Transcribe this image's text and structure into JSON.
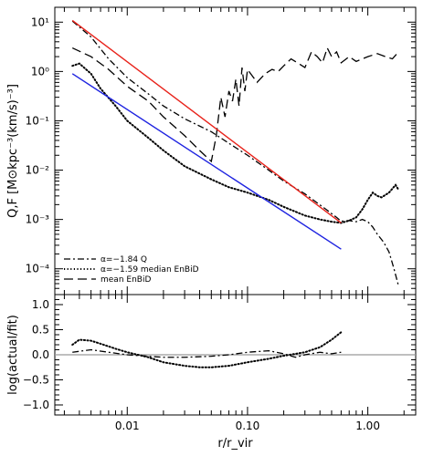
{
  "chart_data": [
    {
      "panel": "top",
      "type": "line",
      "xlabel": "r/r_vir",
      "ylabel": "Q,F [M⊙kpc⁻³(km/s)⁻³]",
      "xscale": "log",
      "yscale": "log",
      "xlim": [
        0.0025,
        2.5
      ],
      "ylim": [
        3e-05,
        20
      ],
      "xticks": [
        0.01,
        0.1,
        1.0
      ],
      "xtick_labels": [
        "0.01",
        "0.10",
        "1.00"
      ],
      "yticks": [
        0.0001,
        0.001,
        0.01,
        0.1,
        1,
        10
      ],
      "ytick_labels": [
        "10⁻⁴",
        "10⁻³",
        "10⁻²",
        "10⁻¹",
        "10⁰",
        "10¹"
      ],
      "legend": {
        "position": "bottom-left",
        "entries": [
          {
            "label": "α=−1.84 Q",
            "style": "dashdot"
          },
          {
            "label": "α=−1.59 median EnBiD",
            "style": "dotted"
          },
          {
            "label": "mean EnBiD",
            "style": "longdash"
          }
        ]
      },
      "series": [
        {
          "style": "dashdot",
          "color": "#000000",
          "x": [
            0.0035,
            0.005,
            0.007,
            0.01,
            0.015,
            0.02,
            0.03,
            0.05,
            0.07,
            0.1,
            0.15,
            0.2,
            0.3,
            0.45,
            0.55,
            0.6,
            0.7,
            0.8,
            0.9,
            1.0,
            1.1,
            1.2,
            1.35,
            1.5,
            1.65,
            1.8
          ],
          "y": [
            10.5,
            5.0,
            1.8,
            0.75,
            0.35,
            0.2,
            0.11,
            0.06,
            0.035,
            0.02,
            0.01,
            0.006,
            0.0033,
            0.0016,
            0.0011,
            0.00092,
            0.00095,
            0.0009,
            0.001,
            0.0009,
            0.0007,
            0.0005,
            0.00035,
            0.00022,
            0.0001,
            4.5e-05
          ]
        },
        {
          "style": "dotted",
          "color": "#000000",
          "x": [
            0.0035,
            0.004,
            0.005,
            0.006,
            0.008,
            0.01,
            0.015,
            0.02,
            0.03,
            0.05,
            0.07,
            0.1,
            0.15,
            0.2,
            0.3,
            0.4,
            0.5,
            0.6,
            0.7,
            0.8,
            0.9,
            1.0,
            1.1,
            1.2,
            1.3,
            1.5,
            1.7,
            1.8
          ],
          "y": [
            1.3,
            1.45,
            0.9,
            0.45,
            0.2,
            0.1,
            0.045,
            0.025,
            0.012,
            0.0065,
            0.0045,
            0.0035,
            0.0025,
            0.0018,
            0.0012,
            0.001,
            0.0009,
            0.00085,
            0.00095,
            0.0011,
            0.0016,
            0.0025,
            0.0035,
            0.003,
            0.0028,
            0.0035,
            0.005,
            0.004
          ]
        },
        {
          "style": "longdash",
          "color": "#000000",
          "x": [
            0.0035,
            0.005,
            0.007,
            0.01,
            0.015,
            0.02,
            0.03,
            0.04,
            0.05,
            0.055,
            0.06,
            0.065,
            0.07,
            0.075,
            0.08,
            0.085,
            0.09,
            0.095,
            0.1,
            0.12,
            0.14,
            0.16,
            0.18,
            0.2,
            0.23,
            0.26,
            0.3,
            0.34,
            0.38,
            0.42,
            0.46,
            0.5,
            0.55,
            0.6,
            0.7,
            0.8,
            1.0,
            1.2,
            1.4,
            1.6,
            1.8
          ],
          "y": [
            3.0,
            2.0,
            1.1,
            0.5,
            0.25,
            0.12,
            0.05,
            0.025,
            0.015,
            0.05,
            0.3,
            0.12,
            0.4,
            0.25,
            0.7,
            0.2,
            1.2,
            0.4,
            1.1,
            0.6,
            0.9,
            1.1,
            1.0,
            1.3,
            1.8,
            1.5,
            1.2,
            2.5,
            2.0,
            1.5,
            3.0,
            2.0,
            2.5,
            1.5,
            2.0,
            1.6,
            2.0,
            2.3,
            2.0,
            1.8,
            2.5
          ]
        },
        {
          "style": "solid",
          "color": "#e8221a",
          "x": [
            0.0035,
            0.6
          ],
          "y": [
            10.8,
            0.00085
          ]
        },
        {
          "style": "solid",
          "color": "#1e23e0",
          "x": [
            0.0035,
            0.6
          ],
          "y": [
            0.9,
            0.00025
          ]
        }
      ]
    },
    {
      "panel": "bottom",
      "type": "line",
      "xlabel": "r/r_vir",
      "ylabel": "log(actual/fit)",
      "xscale": "log",
      "xlim": [
        0.0025,
        2.5
      ],
      "ylim": [
        -1.2,
        1.2
      ],
      "xticks": [
        0.01,
        0.1,
        1.0
      ],
      "xtick_labels": [
        "0.01",
        "0.10",
        "1.00"
      ],
      "yticks": [
        -1.0,
        -0.5,
        0.0,
        0.5,
        1.0
      ],
      "ytick_labels": [
        "−1.0",
        "−0.5",
        "0.0",
        "0.5",
        "1.0"
      ],
      "reference_line": {
        "y": 0,
        "color": "#999999"
      },
      "series": [
        {
          "style": "dotted",
          "color": "#000000",
          "x": [
            0.0035,
            0.004,
            0.005,
            0.006,
            0.008,
            0.01,
            0.015,
            0.02,
            0.03,
            0.04,
            0.05,
            0.07,
            0.1,
            0.15,
            0.2,
            0.3,
            0.4,
            0.5,
            0.6
          ],
          "y": [
            0.2,
            0.3,
            0.28,
            0.22,
            0.12,
            0.05,
            -0.05,
            -0.15,
            -0.22,
            -0.25,
            -0.25,
            -0.22,
            -0.15,
            -0.08,
            -0.02,
            0.05,
            0.15,
            0.3,
            0.45
          ]
        },
        {
          "style": "dashdot",
          "color": "#000000",
          "x": [
            0.0035,
            0.005,
            0.007,
            0.01,
            0.015,
            0.02,
            0.03,
            0.05,
            0.07,
            0.1,
            0.15,
            0.2,
            0.25,
            0.3,
            0.4,
            0.5,
            0.6
          ],
          "y": [
            0.05,
            0.1,
            0.05,
            0.0,
            -0.03,
            -0.05,
            -0.05,
            -0.03,
            0.0,
            0.05,
            0.08,
            0.02,
            -0.05,
            0.0,
            0.05,
            0.02,
            0.05
          ]
        }
      ]
    }
  ]
}
